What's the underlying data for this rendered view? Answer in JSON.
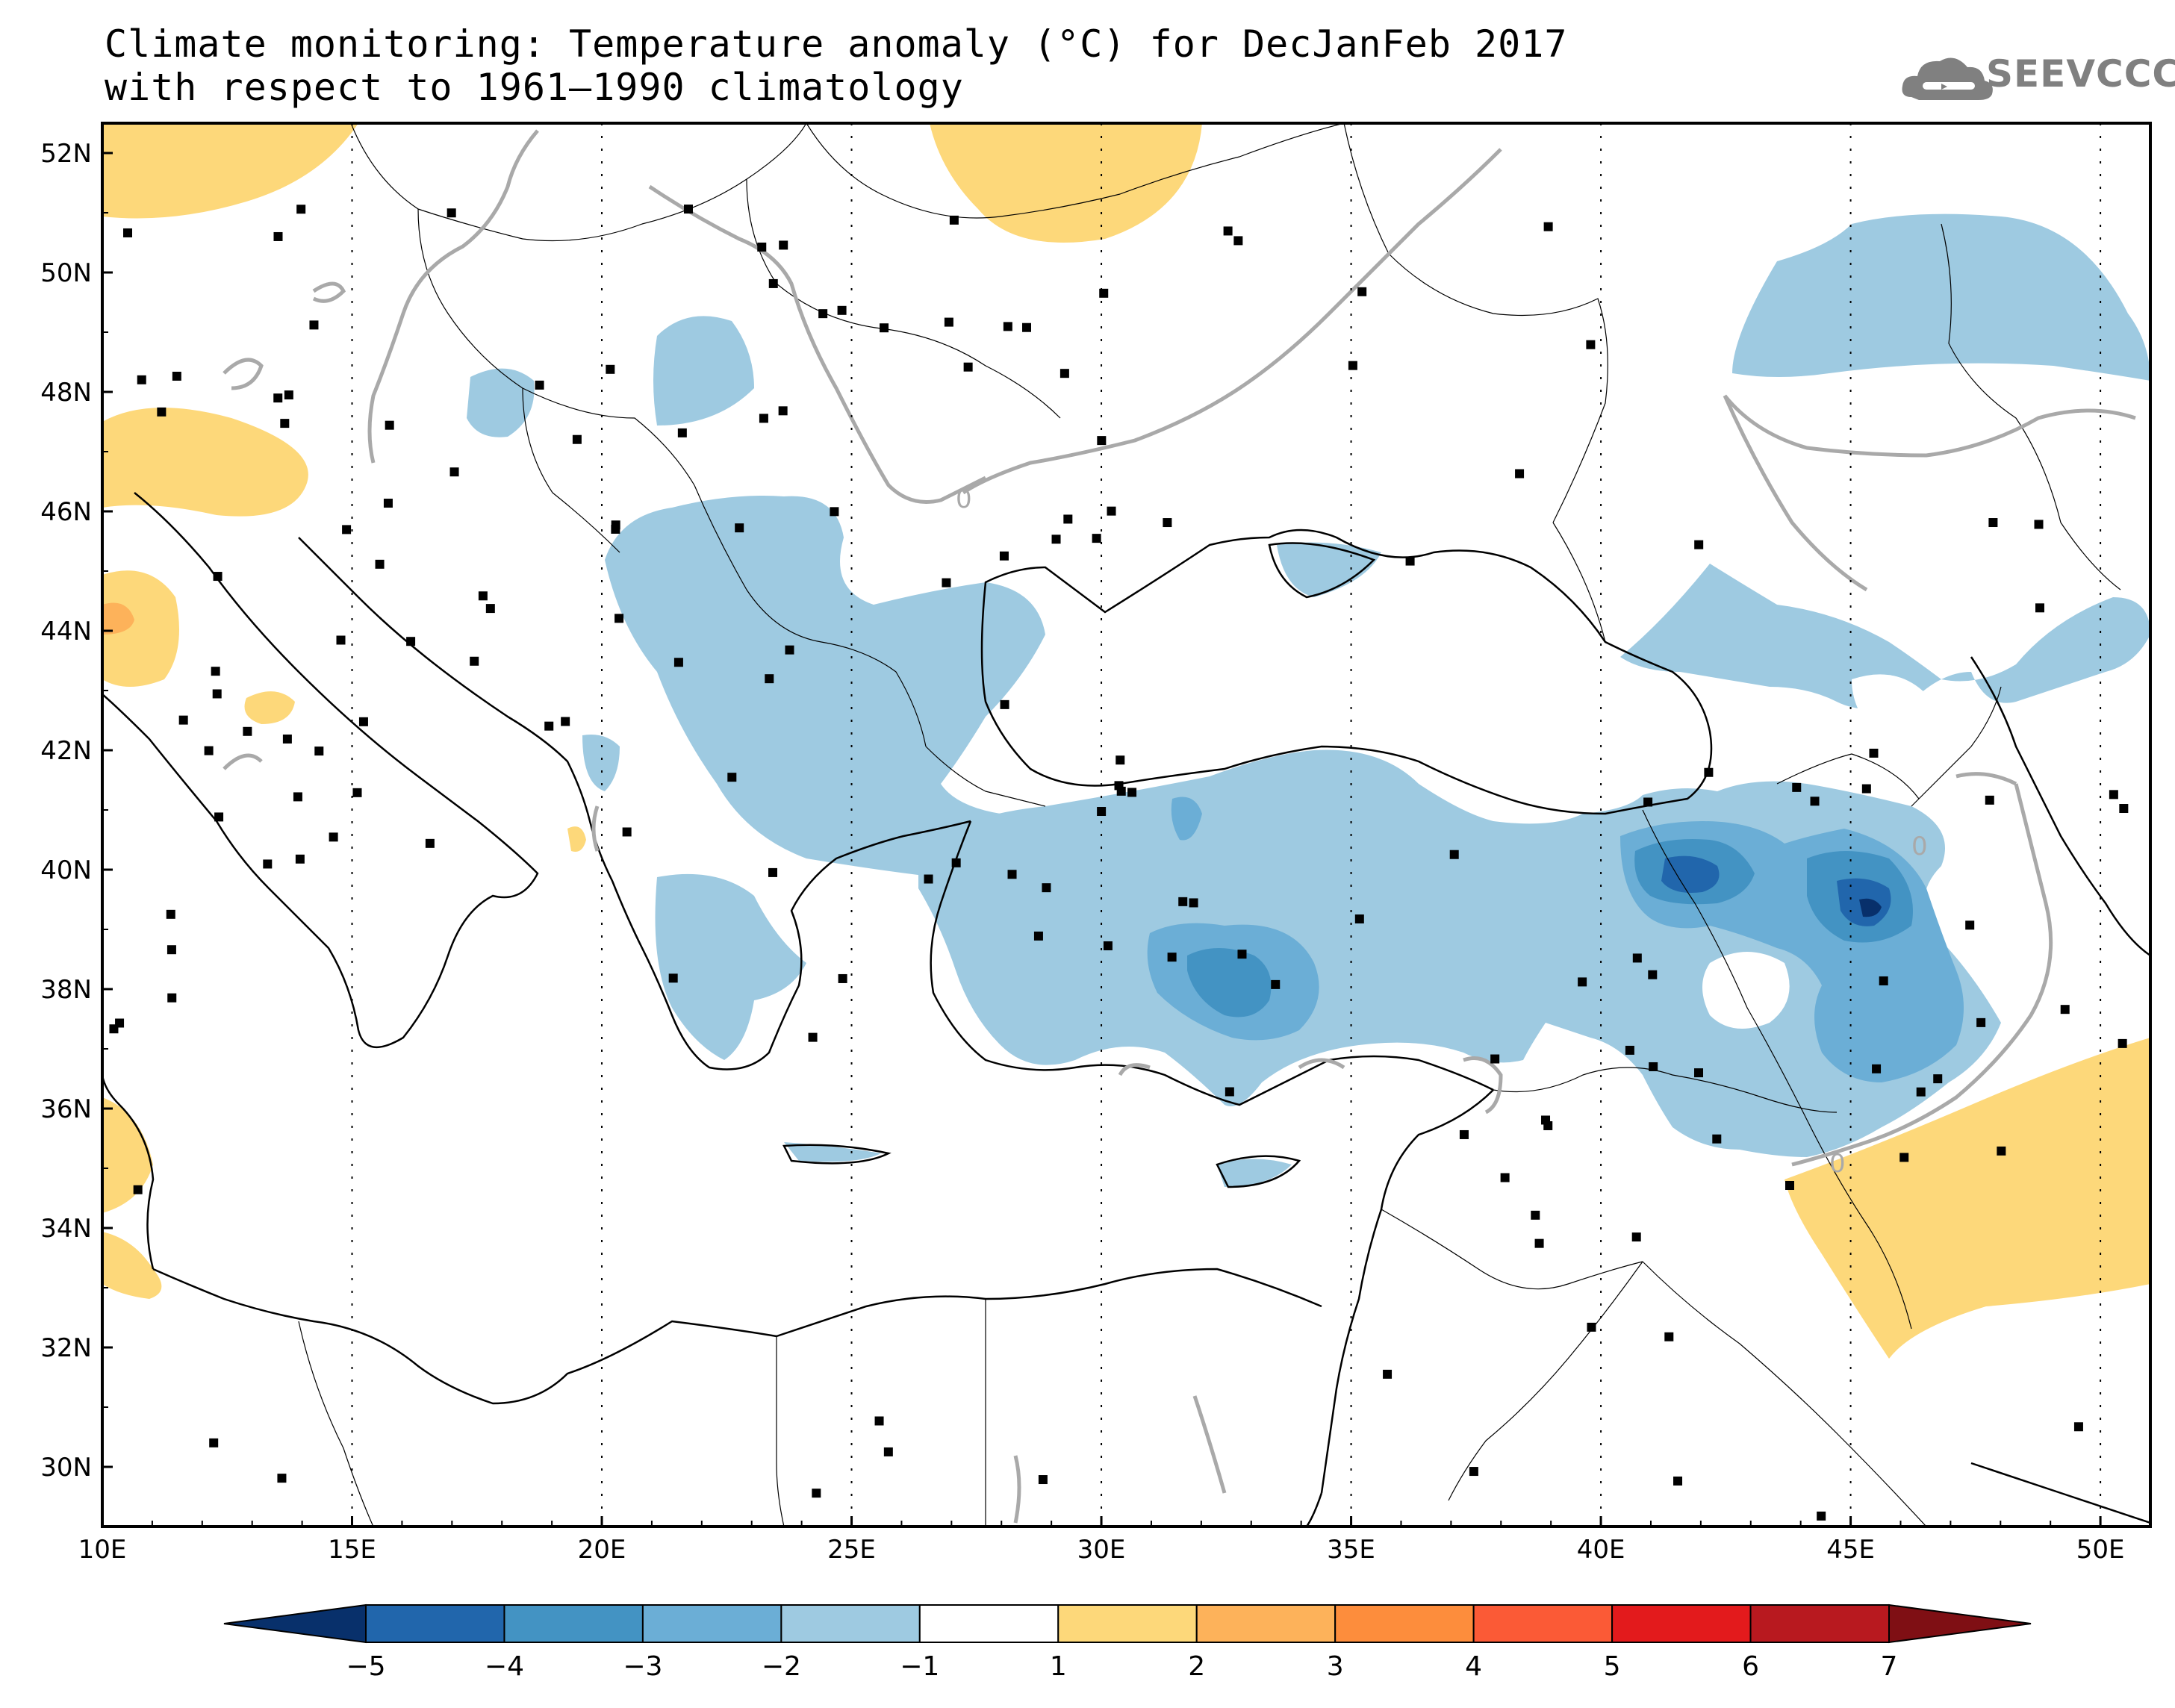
{
  "title": {
    "line1": "Climate monitoring: Temperature anomaly (°C) for DecJanFeb 2017",
    "line2": "with respect to 1961–1990 climatology"
  },
  "logo": {
    "text": "SEEVCCC",
    "icon": "cloud-icon"
  },
  "map": {
    "lon_range": [
      10,
      51
    ],
    "lat_range": [
      29,
      52.5
    ],
    "x_ticks": [
      "10E",
      "15E",
      "20E",
      "25E",
      "30E",
      "35E",
      "40E",
      "45E",
      "50E"
    ],
    "y_ticks": [
      "52N",
      "50N",
      "48N",
      "46N",
      "44N",
      "42N",
      "40N",
      "38N",
      "36N",
      "34N",
      "32N",
      "30N"
    ],
    "contour_label": "0",
    "grid": "dotted"
  },
  "colorbar": {
    "labels": [
      "−5",
      "−4",
      "−3",
      "−2",
      "−1",
      "1",
      "2",
      "3",
      "4",
      "5",
      "6",
      "7"
    ],
    "colors": [
      "#08306b",
      "#2166ac",
      "#4393c3",
      "#6baed6",
      "#9ecae1",
      "#ffffff",
      "#fdd87a",
      "#fdb25a",
      "#fd8d3c",
      "#fb5a36",
      "#e31a1c",
      "#b8191f",
      "#7f0f14"
    ]
  }
}
